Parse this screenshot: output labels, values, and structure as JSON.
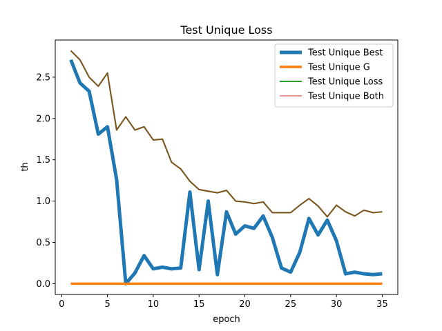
{
  "chart_data": {
    "type": "line",
    "title": "Test Unique Loss",
    "xlabel": "epoch",
    "ylabel": "th",
    "xlim": [
      -0.7,
      36.7
    ],
    "ylim": [
      -0.13,
      2.95
    ],
    "xticks": [
      0,
      5,
      10,
      15,
      20,
      25,
      30,
      35
    ],
    "yticks": [
      0.0,
      0.5,
      1.0,
      1.5,
      2.0,
      2.5
    ],
    "ytick_labels": [
      "0.0",
      "0.5",
      "1.0",
      "1.5",
      "2.0",
      "2.5"
    ],
    "legend_position": "top-right",
    "grid": false,
    "x": [
      1,
      2,
      3,
      4,
      5,
      6,
      7,
      8,
      9,
      10,
      11,
      12,
      13,
      14,
      15,
      16,
      17,
      18,
      19,
      20,
      21,
      22,
      23,
      24,
      25,
      26,
      27,
      28,
      29,
      30,
      31,
      32,
      33,
      34,
      35
    ],
    "series": [
      {
        "name": "Test Unique Best",
        "color": "#1f77b4",
        "values": [
          2.71,
          2.43,
          2.33,
          1.81,
          1.9,
          1.26,
          0.0,
          0.13,
          0.34,
          0.18,
          0.2,
          0.18,
          0.19,
          1.11,
          0.17,
          1.0,
          0.11,
          0.87,
          0.6,
          0.7,
          0.67,
          0.82,
          0.56,
          0.19,
          0.14,
          0.38,
          0.79,
          0.59,
          0.77,
          0.52,
          0.12,
          0.14,
          0.12,
          0.11,
          0.12
        ]
      },
      {
        "name": "Test Unique G",
        "color": "#ff7f0e",
        "values": [
          0,
          0,
          0,
          0,
          0,
          0,
          0,
          0,
          0,
          0,
          0,
          0,
          0,
          0,
          0,
          0,
          0,
          0,
          0,
          0,
          0,
          0,
          0,
          0,
          0,
          0,
          0,
          0,
          0,
          0,
          0,
          0,
          0,
          0,
          0
        ]
      },
      {
        "name": "Test Unique Loss",
        "color": "#2ca02c",
        "values": [
          2.82,
          2.71,
          2.5,
          2.39,
          2.55,
          1.86,
          2.02,
          1.86,
          1.9,
          1.74,
          1.75,
          1.47,
          1.39,
          1.24,
          1.14,
          1.12,
          1.1,
          1.13,
          1.0,
          0.99,
          0.97,
          0.99,
          0.86,
          0.86,
          0.86,
          0.95,
          1.03,
          0.94,
          0.81,
          0.95,
          0.87,
          0.82,
          0.89,
          0.86,
          0.87
        ]
      },
      {
        "name": "Test Unique Both",
        "color": "#d62728",
        "values": [
          2.82,
          2.71,
          2.5,
          2.39,
          2.55,
          1.86,
          2.02,
          1.86,
          1.9,
          1.74,
          1.75,
          1.47,
          1.39,
          1.24,
          1.14,
          1.12,
          1.1,
          1.13,
          1.0,
          0.99,
          0.97,
          0.99,
          0.86,
          0.86,
          0.86,
          0.95,
          1.03,
          0.94,
          0.81,
          0.95,
          0.87,
          0.82,
          0.89,
          0.86,
          0.87
        ]
      }
    ]
  }
}
